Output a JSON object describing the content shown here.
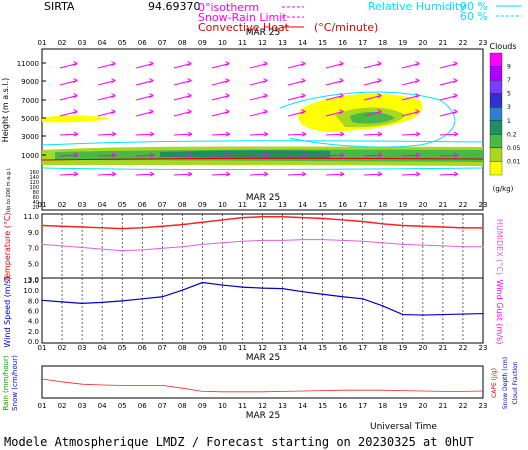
{
  "header": {
    "site": "SIRTA",
    "coords": "94.69370",
    "legend_isotherm": "0°isotherm",
    "legend_snow": "Snow-Rain Limit",
    "legend_convective": "Convective Heat",
    "legend_convective_unit": "(°C/minute)",
    "legend_rh_title": "Relative Humidity",
    "legend_rh_90": "90 %",
    "legend_rh_60": "60 %",
    "date_label": "MAR 25"
  },
  "colors": {
    "magenta": "#ff00ff",
    "cyan": "#00e5ff",
    "red": "#e00000",
    "blue": "#0000c8",
    "temp_red": "#ff2020",
    "humidex": "#e060e0",
    "rain": "#ff2020"
  },
  "clouds_scale": {
    "title": "Clouds",
    "unit": "(g/kg)",
    "levels": [
      "9",
      "7",
      "5",
      "3",
      "1",
      "0.2",
      "0.05",
      "0.01"
    ],
    "colors": [
      "#ff00ff",
      "#b000ff",
      "#7a3cff",
      "#3030d0",
      "#2f7fd0",
      "#1f8f5f",
      "#48b848",
      "#a8d820",
      "#ffff00"
    ]
  },
  "chart_data": [
    {
      "type": "area",
      "name": "clouds",
      "ylabel": "Height (m a.s.l.)",
      "ylabel2": "Up to 200 m a.g.l.",
      "ytick_labels": [
        "11000",
        "9000",
        "7000",
        "5000",
        "3000",
        "1000"
      ],
      "ytick_labels_low": [
        "160",
        "140",
        "120",
        "100",
        "80",
        "60",
        "40",
        "20"
      ],
      "x_hours": [
        "01",
        "02",
        "03",
        "04",
        "05",
        "06",
        "07",
        "08",
        "09",
        "10",
        "11",
        "12",
        "13",
        "14",
        "15",
        "16",
        "17",
        "18",
        "19",
        "20",
        "21",
        "22",
        "23"
      ],
      "grid": false
    },
    {
      "type": "line",
      "name": "temperature",
      "ylabel": "Temperature (°C)",
      "ylabel2": "HUMIDEX (°C)",
      "yticks": [
        "11.0",
        "9.0",
        "7.0",
        "5.0",
        "3.0"
      ],
      "ylim": [
        3.0,
        11.0
      ],
      "x": [
        "01",
        "02",
        "03",
        "04",
        "05",
        "06",
        "07",
        "08",
        "09",
        "10",
        "11",
        "12",
        "13",
        "14",
        "15",
        "16",
        "17",
        "18",
        "19",
        "20",
        "21",
        "22",
        "23"
      ],
      "series": [
        {
          "name": "Temperature",
          "values": [
            9.8,
            9.7,
            9.6,
            9.5,
            9.4,
            9.5,
            9.7,
            9.9,
            10.2,
            10.5,
            10.8,
            10.9,
            10.9,
            10.8,
            10.7,
            10.5,
            10.3,
            10.0,
            9.8,
            9.7,
            9.6,
            9.5,
            9.5
          ]
        },
        {
          "name": "HUMIDEX",
          "values": [
            7.4,
            7.2,
            7.0,
            6.8,
            6.6,
            6.7,
            6.9,
            7.1,
            7.4,
            7.6,
            7.8,
            7.9,
            7.9,
            8.0,
            8.0,
            7.9,
            7.8,
            7.6,
            7.4,
            7.3,
            7.2,
            7.1,
            7.1
          ]
        }
      ]
    },
    {
      "type": "line",
      "name": "wind",
      "ylabel": "Wind Speed (m/s)",
      "ylabel2": "Wind Gust (m/s)",
      "yticks": [
        "12.0",
        "10.0",
        "8.0",
        "6.0",
        "4.0",
        "2.0",
        "0.0"
      ],
      "ylim": [
        0.0,
        12.0
      ],
      "x": [
        "01",
        "02",
        "03",
        "04",
        "05",
        "06",
        "07",
        "08",
        "09",
        "10",
        "11",
        "12",
        "13",
        "14",
        "15",
        "16",
        "17",
        "18",
        "19",
        "20",
        "21",
        "22",
        "23"
      ],
      "series": [
        {
          "name": "Wind Speed",
          "values": [
            8.0,
            7.7,
            7.4,
            7.6,
            7.9,
            8.3,
            8.7,
            10.0,
            11.5,
            11.0,
            10.6,
            10.4,
            10.3,
            9.7,
            9.2,
            8.7,
            8.3,
            6.9,
            5.2,
            5.1,
            5.2,
            5.3,
            5.4
          ]
        }
      ]
    },
    {
      "type": "line",
      "name": "precip",
      "ylabel": "Rain (mm/hour)",
      "ylabel_snow": "Snow (cm/hour)",
      "ylabel2": "CAPE (J/g)",
      "ylabel3": "Snow Depth (cm)",
      "ylabel4": "Cloud Fraction",
      "xlabel": "Universal Time",
      "x": [
        "01",
        "02",
        "03",
        "04",
        "05",
        "06",
        "07",
        "08",
        "09",
        "10",
        "11",
        "12",
        "13",
        "14",
        "15",
        "16",
        "17",
        "18",
        "19",
        "20",
        "21",
        "22",
        "23"
      ],
      "series": [
        {
          "name": "CAPE",
          "values": [
            0.45,
            0.38,
            0.32,
            0.3,
            0.29,
            0.29,
            0.29,
            0.22,
            0.14,
            0.13,
            0.13,
            0.13,
            0.14,
            0.15,
            0.16,
            0.17,
            0.17,
            0.17,
            0.16,
            0.15,
            0.14,
            0.14,
            0.15
          ]
        }
      ]
    }
  ],
  "footer": {
    "text": "Modele Atmospherique LMDZ / Forecast starting on 20230325 at 0hUT"
  }
}
